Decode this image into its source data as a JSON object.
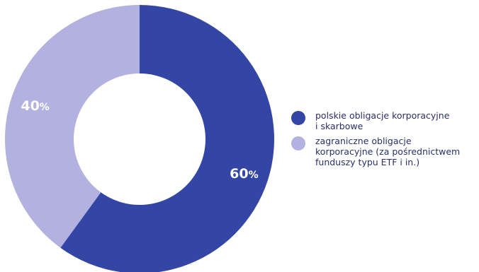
{
  "chart_data": {
    "type": "pie",
    "style": "donut",
    "categories": [
      "polskie obligacje korporacyjne\ni skarbowe",
      "zagraniczne obligacje\nkorporacyjne (za pośrednictwem\nfunduszy typu ETF i in.)"
    ],
    "values": [
      60,
      40
    ],
    "data_labels": [
      {
        "num": "60",
        "pct": "%"
      },
      {
        "num": "40",
        "pct": "%"
      }
    ],
    "colors": [
      "#3345a5",
      "#b3b1df"
    ],
    "legend": "right"
  }
}
